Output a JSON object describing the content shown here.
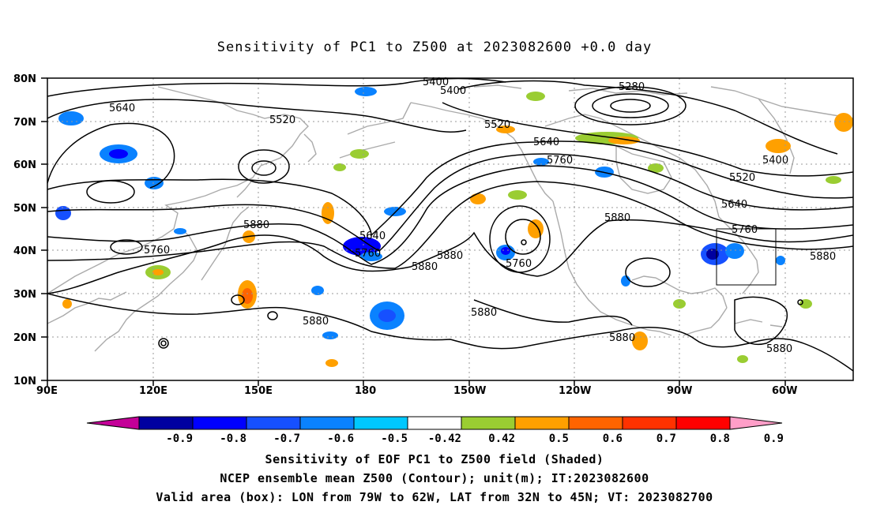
{
  "title": "Sensitivity of PC1 to Z500 at 2023082600 +0.0 day",
  "lat_labels": [
    "80N",
    "70N",
    "60N",
    "50N",
    "40N",
    "30N",
    "20N",
    "10N"
  ],
  "lon_labels": [
    "90E",
    "120E",
    "150E",
    "180",
    "150W",
    "120W",
    "90W",
    "60W"
  ],
  "contour_labels": [
    "5400",
    "5400",
    "5280",
    "5640",
    "5520",
    "5520",
    "5640",
    "5760",
    "5400",
    "5520",
    "5640",
    "5880",
    "5760",
    "5640",
    "5760",
    "5880",
    "5880",
    "5760",
    "5880",
    "5760",
    "5880",
    "5880",
    "5880",
    "5880",
    "5880"
  ],
  "colorbar": {
    "labels": [
      "-0.9",
      "-0.8",
      "-0.7",
      "-0.6",
      "-0.5",
      "-0.42",
      "0.42",
      "0.5",
      "0.6",
      "0.7",
      "0.8",
      "0.9"
    ],
    "colors": [
      "#c40098",
      "#0000a0",
      "#0000ff",
      "#1650ff",
      "#0a82ff",
      "#00c8ff",
      "#ffffff",
      "#9acd32",
      "#ffa000",
      "#ff6400",
      "#ff3200",
      "#ff0000",
      "#ff9ec8"
    ]
  },
  "captions": [
    "Sensitivity of EOF PC1 to Z500 field (Shaded)",
    "NCEP ensemble mean Z500 (Contour); unit(m); IT:2023082600",
    "Valid area (box): LON from 79W to 62W, LAT from 32N to 45N; VT: 2023082700"
  ],
  "colors": {
    "contour": "#000000",
    "coast": "#aaaaaa",
    "grid": "#999999"
  }
}
